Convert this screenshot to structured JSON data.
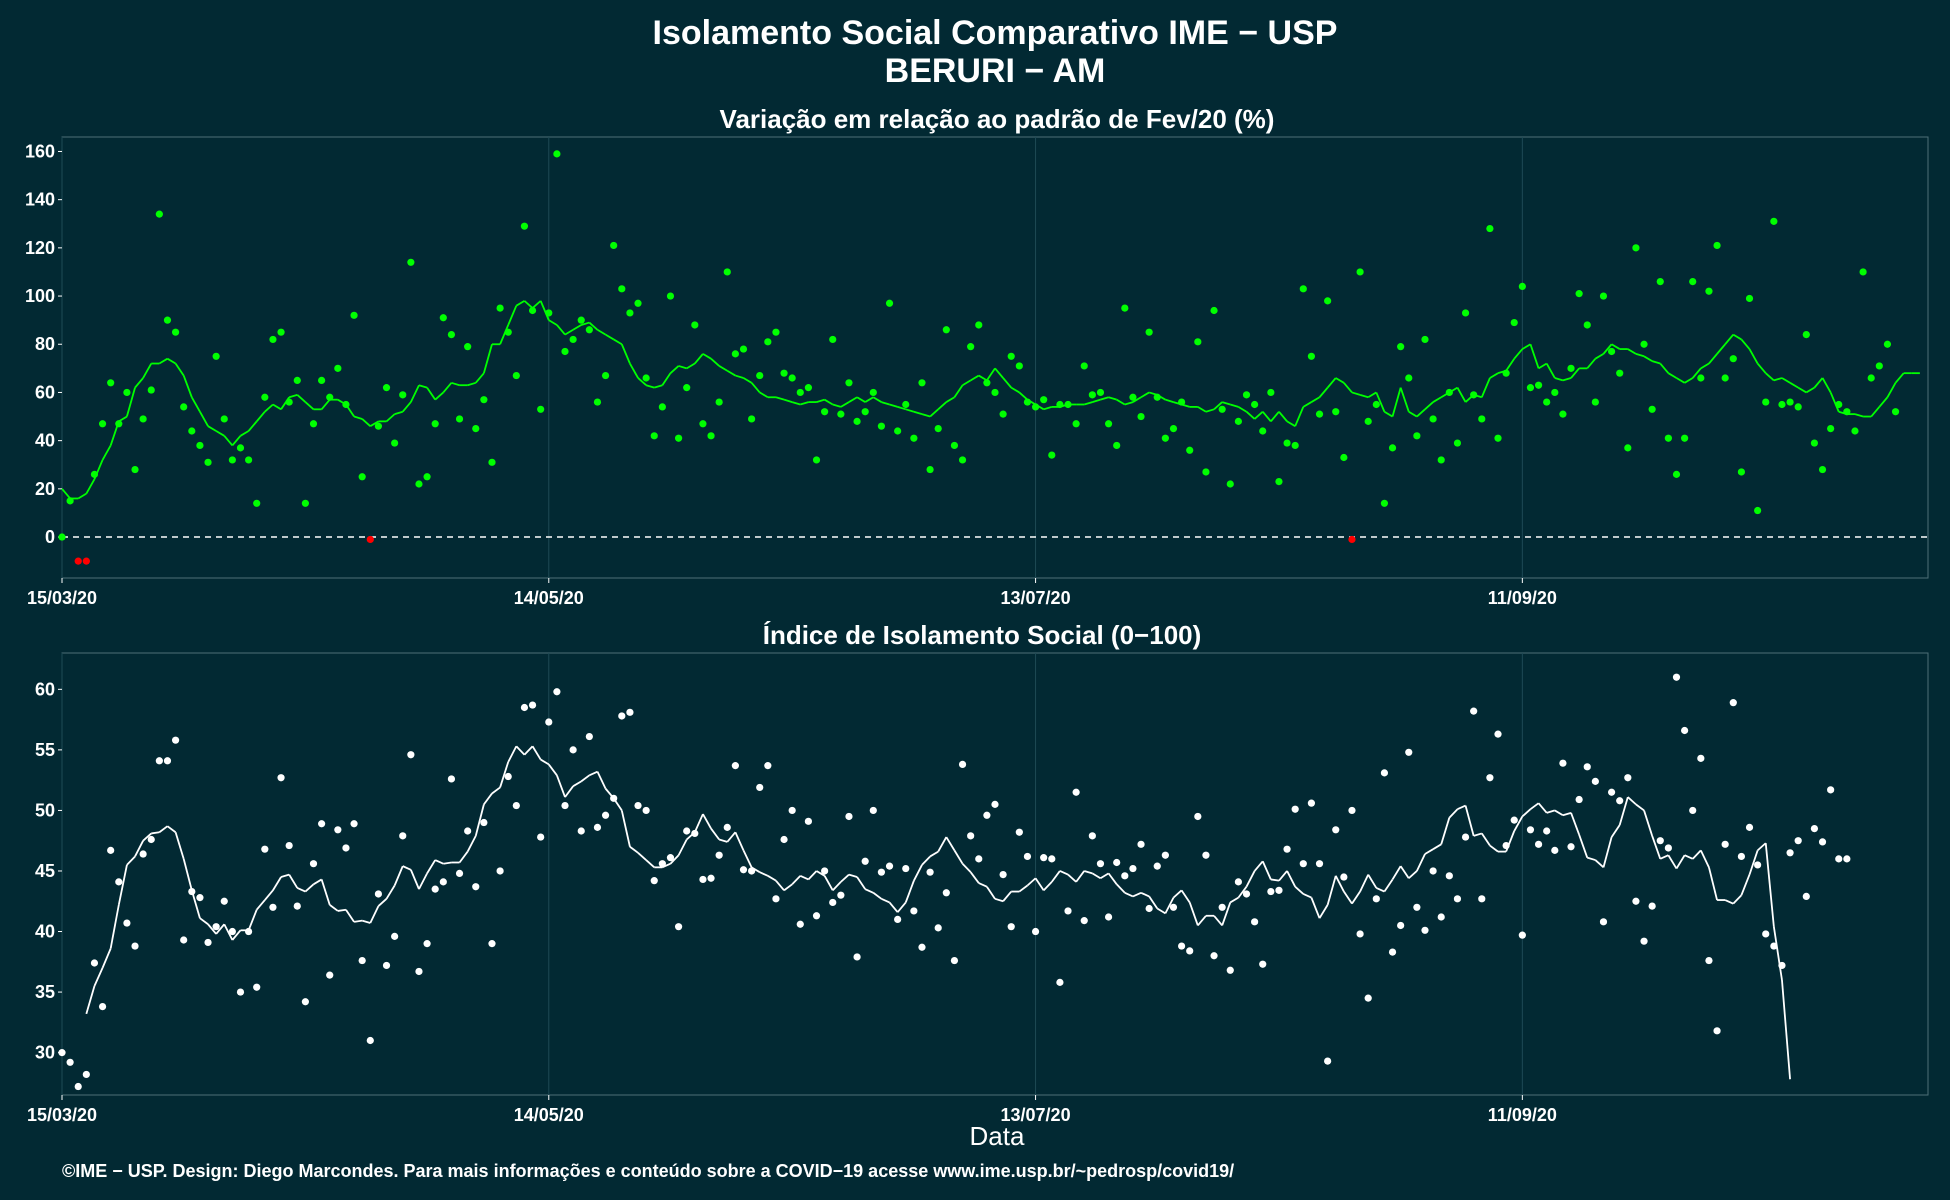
{
  "title_line1": "Isolamento Social Comparativo IME − USP",
  "title_line2": "BERURI − AM",
  "footer": "©IME − USP. Design: Diego Marcondes. Para mais informações e conteúdo sobre a COVID−19 acesse www.ime.usp.br/~pedrosp/covid19/",
  "colors": {
    "background": "#022933",
    "positive": "#00ff00",
    "negative": "#ff0000",
    "index_series": "#ffffff",
    "grid": "#1e4a55"
  },
  "chart_data": [
    {
      "type": "scatter",
      "title": "Variação em relação ao padrão de Fev/20 (%)",
      "xlabel": "",
      "ylabel": "",
      "start_date": "2020-03-15",
      "x_ticks": [
        "15/03/20",
        "14/05/20",
        "13/07/20",
        "11/09/20"
      ],
      "ylim": [
        -17,
        166
      ],
      "y_ticks": [
        0,
        20,
        40,
        60,
        80,
        100,
        120,
        140,
        160
      ],
      "reference_line": 0,
      "series": [
        {
          "values": [
            0,
            15,
            -10,
            -10,
            26,
            47,
            64,
            47,
            60,
            28,
            49,
            61,
            134,
            90,
            85,
            54,
            44,
            38,
            31,
            75,
            49,
            32,
            37,
            32,
            14,
            58,
            82,
            85,
            56,
            65,
            14,
            47,
            65,
            58,
            70,
            55,
            92,
            25,
            -1,
            46,
            62,
            39,
            59,
            114,
            22,
            25,
            47,
            91,
            84,
            49,
            79,
            45,
            57,
            31,
            95,
            85,
            67,
            129,
            94,
            53,
            93,
            159,
            77,
            82,
            90,
            86,
            56,
            67,
            121,
            103,
            93,
            97,
            66,
            42,
            54,
            100,
            41,
            62,
            88,
            47,
            42,
            56,
            110,
            76,
            78,
            49,
            67,
            81,
            85,
            68,
            66,
            60,
            62,
            32,
            52,
            82,
            51,
            64,
            48,
            52,
            60,
            46,
            97,
            44,
            55,
            41,
            64,
            28,
            45,
            86,
            38,
            32,
            79,
            88,
            64,
            60,
            51,
            75,
            71,
            56,
            54,
            57,
            34,
            55,
            55,
            47,
            71,
            59,
            60,
            47,
            38,
            95,
            58,
            50,
            85,
            58,
            41,
            45,
            56,
            36,
            81,
            27,
            94,
            53,
            22,
            48,
            59,
            55,
            44,
            60,
            23,
            39,
            38,
            103,
            75,
            51,
            98,
            52,
            33,
            -1,
            110,
            48,
            55,
            14,
            37,
            79,
            66,
            42,
            82,
            49,
            32,
            60,
            39,
            93,
            59,
            49,
            128,
            41,
            68,
            89,
            104,
            62,
            63,
            56,
            60,
            51,
            70,
            101,
            88,
            56,
            100,
            77,
            68,
            37,
            120,
            80,
            53,
            106,
            41,
            26,
            41,
            106,
            66,
            102,
            121,
            66,
            74,
            27,
            99,
            11,
            56,
            131,
            55,
            56,
            54,
            84,
            39,
            28,
            45,
            55,
            52,
            44,
            110,
            66,
            71,
            80,
            52
          ]
        },
        {
          "values": [
            20,
            16,
            16,
            18,
            24,
            32,
            38,
            48,
            50,
            62,
            66,
            72,
            72,
            74,
            72,
            67,
            58,
            52,
            46,
            44,
            42,
            38,
            42,
            44,
            48,
            52,
            55,
            53,
            58,
            59,
            56,
            53,
            53,
            57,
            57,
            55,
            50,
            49,
            46,
            48,
            48,
            51,
            52,
            56,
            63,
            62,
            57,
            60,
            64,
            63,
            63,
            64,
            68,
            80,
            80,
            88,
            96,
            98,
            95,
            98,
            90,
            88,
            84,
            86,
            88,
            89,
            86,
            84,
            82,
            80,
            72,
            66,
            63,
            62,
            63,
            68,
            71,
            70,
            72,
            76,
            74,
            71,
            69,
            67,
            66,
            64,
            60,
            58,
            58,
            57,
            56,
            55,
            56,
            56,
            57,
            55,
            54,
            56,
            58,
            56,
            58,
            56,
            55,
            54,
            53,
            52,
            51,
            50,
            53,
            56,
            58,
            63,
            65,
            67,
            65,
            70,
            66,
            62,
            60,
            57,
            55,
            53,
            54,
            54,
            55,
            55,
            55,
            56,
            57,
            58,
            57,
            55,
            56,
            58,
            60,
            59,
            57,
            56,
            55,
            54,
            54,
            52,
            53,
            56,
            55,
            54,
            52,
            49,
            52,
            48,
            52,
            48,
            46,
            54,
            56,
            58,
            62,
            66,
            64,
            60,
            59,
            58,
            60,
            52,
            50,
            62,
            52,
            50,
            53,
            56,
            58,
            60,
            62,
            56,
            59,
            58,
            66,
            68,
            69,
            74,
            78,
            80,
            70,
            72,
            66,
            65,
            66,
            70,
            70,
            74,
            76,
            80,
            78,
            78,
            76,
            75,
            73,
            72,
            68,
            66,
            64,
            66,
            70,
            72,
            76,
            80,
            84,
            82,
            78,
            72,
            68,
            65,
            66,
            64,
            62,
            60,
            62,
            66,
            60,
            52,
            51,
            51,
            50,
            50,
            54,
            58,
            64,
            68,
            68,
            68
          ]
        }
      ]
    },
    {
      "type": "scatter",
      "title": "Índice de Isolamento Social (0−100)",
      "xlabel": "Data",
      "ylabel": "",
      "start_date": "2020-03-15",
      "x_ticks": [
        "15/03/20",
        "14/05/20",
        "13/07/20",
        "11/09/20"
      ],
      "ylim": [
        26.5,
        63
      ],
      "y_ticks": [
        30,
        35,
        40,
        45,
        50,
        55,
        60
      ],
      "series": [
        {
          "values": [
            30,
            29.2,
            27.2,
            28.2,
            37.4,
            33.8,
            46.7,
            44.1,
            40.7,
            38.8,
            46.4,
            47.6,
            54.1,
            54.1,
            55.8,
            39.3,
            43.3,
            42.8,
            39.1,
            40.4,
            42.5,
            40,
            35,
            40,
            35.4,
            46.8,
            42,
            52.7,
            47.1,
            42.1,
            34.2,
            45.6,
            48.9,
            36.4,
            48.4,
            46.9,
            48.9,
            37.6,
            31,
            43.1,
            37.2,
            39.6,
            47.9,
            54.6,
            36.7,
            39,
            43.5,
            44.1,
            52.6,
            44.8,
            48.3,
            43.7,
            49,
            39,
            45,
            52.8,
            50.4,
            58.5,
            58.7,
            47.8,
            57.3,
            59.8,
            50.4,
            55,
            48.3,
            56.1,
            48.6,
            49.6,
            51,
            57.8,
            58.1,
            50.4,
            50,
            44.2,
            45.6,
            46.1,
            40.4,
            48.3,
            48.1,
            44.3,
            44.4,
            46.3,
            48.6,
            53.7,
            45.1,
            45,
            51.9,
            53.7,
            42.7,
            47.6,
            50,
            40.6,
            49.1,
            41.3,
            45,
            42.4,
            43,
            49.5,
            37.9,
            45.8,
            50,
            44.9,
            45.4,
            41,
            45.2,
            41.7,
            38.7,
            44.9,
            40.3,
            43.2,
            37.6,
            53.8,
            47.9,
            46,
            49.6,
            50.5,
            44.7,
            40.4,
            48.2,
            46.2,
            40,
            46.1,
            46,
            35.8,
            41.7,
            51.5,
            40.9,
            47.9,
            45.6,
            41.2,
            45.7,
            44.6,
            45.2,
            47.2,
            41.9,
            45.4,
            46.3,
            42,
            38.8,
            38.4,
            49.5,
            46.3,
            38,
            42,
            36.8,
            44.1,
            43.1,
            40.8,
            37.3,
            43.3,
            43.4,
            46.8,
            50.1,
            45.6,
            50.6,
            45.6,
            29.3,
            48.4,
            44.5,
            50,
            39.8,
            34.5,
            42.7,
            53.1,
            38.3,
            40.5,
            54.8,
            42,
            40.1,
            45,
            41.2,
            44.6,
            42.7,
            47.8,
            58.2,
            42.7,
            52.7,
            56.3,
            47.1,
            49.2,
            39.7,
            48.4,
            47.2,
            48.3,
            46.7,
            53.9,
            47,
            50.9,
            53.6,
            52.4,
            40.8,
            51.5,
            50.8,
            52.7,
            42.5,
            39.2,
            42.1,
            47.5,
            46.9,
            61,
            56.6,
            50,
            54.3,
            37.6,
            31.8,
            47.2,
            58.9,
            46.2,
            48.6,
            45.5,
            39.8,
            38.8,
            37.2,
            46.5,
            47.5,
            42.9,
            48.5,
            47.4,
            51.7,
            46,
            46
          ]
        },
        {
          "values": [
            null,
            null,
            null,
            33.2,
            35.5,
            37,
            38.6,
            42.2,
            45.5,
            46.2,
            47.5,
            48.1,
            48.2,
            48.7,
            48.2,
            46,
            43.4,
            41.1,
            40.6,
            39.8,
            40.6,
            39.3,
            40.1,
            40.1,
            41.8,
            42.6,
            43.4,
            44.5,
            44.7,
            43.6,
            43.3,
            43.9,
            44.3,
            42.2,
            41.7,
            41.8,
            40.8,
            40.9,
            40.7,
            42.1,
            42.7,
            43.8,
            45.4,
            45.1,
            43.5,
            44.8,
            45.9,
            45.6,
            45.7,
            45.7,
            46.6,
            47.9,
            50.5,
            51.4,
            51.9,
            54,
            55.3,
            54.6,
            55.3,
            54.2,
            53.8,
            52.9,
            51.1,
            52,
            52.4,
            52.9,
            53.2,
            51.8,
            51,
            50,
            47,
            46.5,
            45.9,
            45.3,
            45.3,
            45.6,
            46.3,
            47.6,
            48.2,
            49.7,
            48.5,
            47.6,
            47.4,
            48.2,
            46.7,
            45.3,
            44.9,
            44.6,
            44.2,
            43.4,
            43.9,
            44.6,
            44.3,
            45,
            44.6,
            43.4,
            44.1,
            44.7,
            44.5,
            43.5,
            43.2,
            42.7,
            42.4,
            41.6,
            42.4,
            44.2,
            45.5,
            46.2,
            46.6,
            47.8,
            46.7,
            45.6,
            44.9,
            44,
            43.7,
            42.7,
            42.5,
            43.3,
            43.3,
            43.8,
            44.4,
            43.4,
            44.1,
            45,
            44.7,
            44.1,
            45,
            44.8,
            44.4,
            44.8,
            43.9,
            43.2,
            42.9,
            43.2,
            42.9,
            41.9,
            41.5,
            42.8,
            43.4,
            42.4,
            40.5,
            41.3,
            41.3,
            40.5,
            42.4,
            42.8,
            43.7,
            45,
            45.8,
            44.3,
            44.2,
            45,
            43.7,
            43.1,
            42.8,
            41.1,
            42.2,
            44.6,
            43.3,
            42.3,
            43.3,
            44.7,
            43.6,
            43.3,
            44.3,
            45.4,
            44.4,
            45,
            46.4,
            46.8,
            47.2,
            49.4,
            50.1,
            50.4,
            47.9,
            48.1,
            47.1,
            46.6,
            46.6,
            48.3,
            49.5,
            50.1,
            50.6,
            49.8,
            50,
            49.6,
            49.8,
            48,
            46.1,
            45.9,
            45.3,
            47.8,
            48.8,
            51.1,
            50.5,
            50,
            47.9,
            46,
            46.3,
            45.2,
            46.3,
            46,
            46.7,
            45.3,
            42.6,
            42.6,
            42.3,
            43,
            44.7,
            46.7,
            47.3,
            40.4,
            36,
            27.8
          ]
        }
      ]
    }
  ]
}
